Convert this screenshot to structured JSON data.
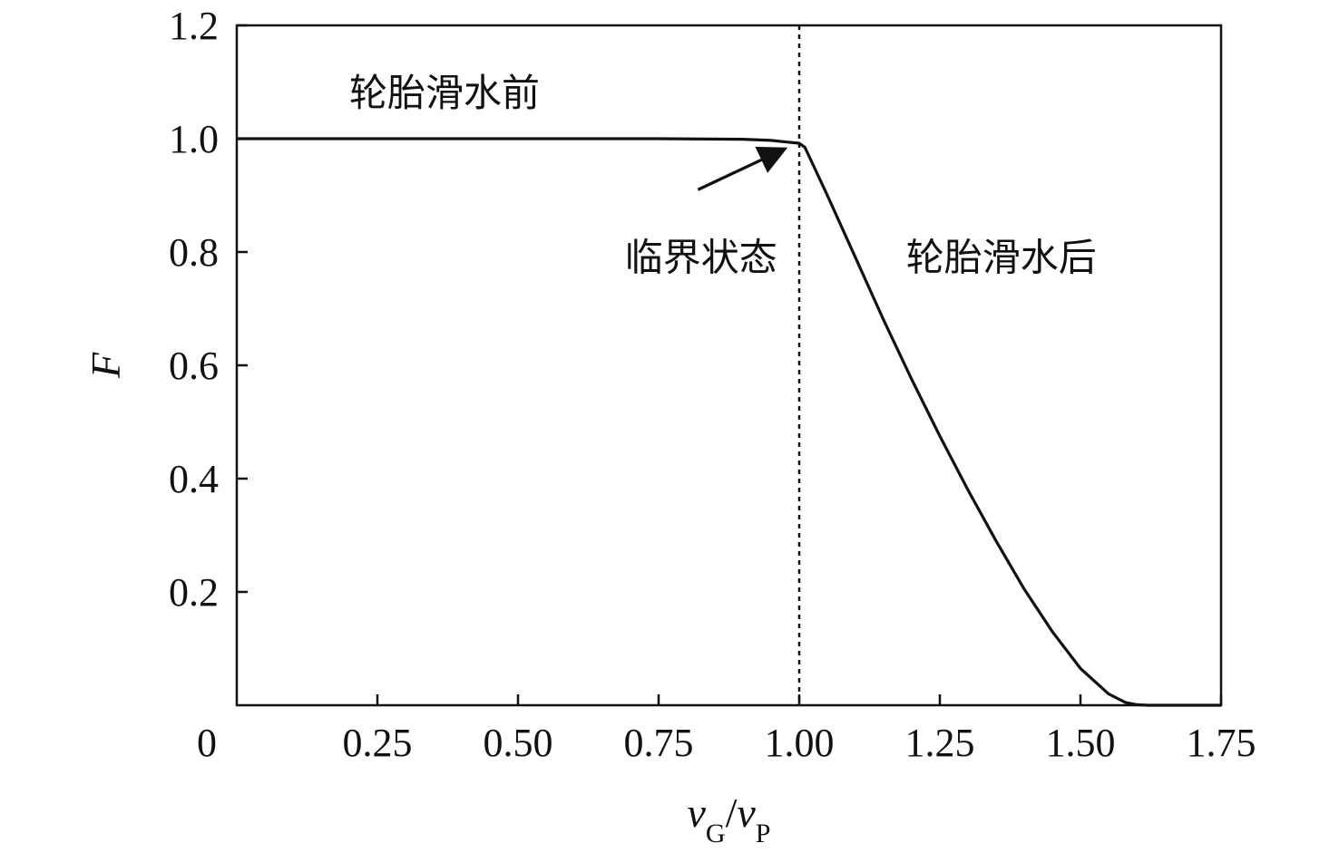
{
  "chart_data": {
    "type": "line",
    "title": "",
    "xlabel": {
      "main": "v",
      "sub1": "G",
      "sep": "/",
      "main2": "v",
      "sub2": "P"
    },
    "ylabel": "F",
    "xlim": [
      0,
      1.75
    ],
    "ylim": [
      0,
      1.2
    ],
    "x_ticks": [
      0.25,
      0.5,
      0.75,
      1.0,
      1.25,
      1.5,
      1.75
    ],
    "x_tick_labels": [
      "0.25",
      "0.50",
      "0.75",
      "1.00",
      "1.25",
      "1.50",
      "1.75"
    ],
    "y_ticks": [
      0.2,
      0.4,
      0.6,
      0.8,
      1.0,
      1.2
    ],
    "y_tick_labels": [
      "0.2",
      "0.4",
      "0.6",
      "0.8",
      "1.0",
      "1.2"
    ],
    "origin_label": "0",
    "grid": false,
    "legend": "none",
    "series": [
      {
        "x": [
          0,
          0.25,
          0.5,
          0.75,
          0.9,
          0.95,
          0.98,
          1.0,
          1.01,
          1.05,
          1.1,
          1.15,
          1.2,
          1.25,
          1.3,
          1.35,
          1.4,
          1.45,
          1.5,
          1.55,
          1.58,
          1.6,
          1.62,
          1.65,
          1.7,
          1.75
        ],
        "y": [
          1.0,
          1.0,
          1.0,
          1.0,
          0.999,
          0.997,
          0.994,
          0.992,
          0.985,
          0.9,
          0.79,
          0.68,
          0.575,
          0.475,
          0.38,
          0.29,
          0.205,
          0.13,
          0.065,
          0.02,
          0.005,
          0.001,
          0.0,
          0.0,
          0.0,
          0.0
        ],
        "color": "#111111"
      }
    ],
    "critical_line": {
      "x": 1.0
    },
    "annotations": [
      {
        "text": "轮胎滑水前",
        "x": 0.2,
        "y": 1.08
      },
      {
        "text": "临界状态",
        "x": 0.69,
        "y": 0.79
      },
      {
        "text": "轮胎滑水后",
        "x": 1.19,
        "y": 0.79
      }
    ],
    "arrow": {
      "from": [
        0.82,
        0.91
      ],
      "to": [
        0.97,
        0.98
      ]
    }
  }
}
